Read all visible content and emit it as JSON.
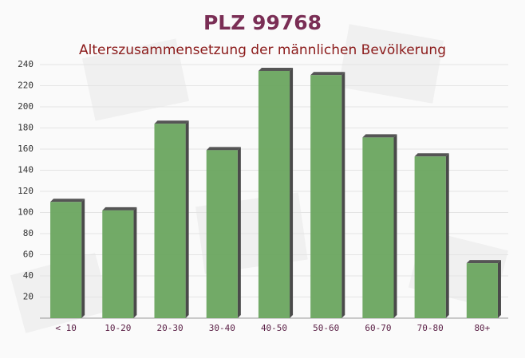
{
  "chart_data": {
    "type": "bar",
    "title": "PLZ 99768",
    "subtitle": "Alterszusammensetzung der männlichen Bevölkerung",
    "categories": [
      "< 10",
      "10-20",
      "20-30",
      "30-40",
      "40-50",
      "50-60",
      "60-70",
      "70-80",
      "80+"
    ],
    "values": [
      110,
      102,
      184,
      159,
      234,
      230,
      171,
      153,
      52
    ],
    "color": "#6aa55f",
    "title_color": "#7a2e55",
    "subtitle_color": "#8b1a1a",
    "ylim": [
      0,
      240
    ],
    "yticks": [
      20,
      40,
      60,
      80,
      100,
      120,
      140,
      160,
      180,
      200,
      220,
      240
    ],
    "grid": true
  }
}
